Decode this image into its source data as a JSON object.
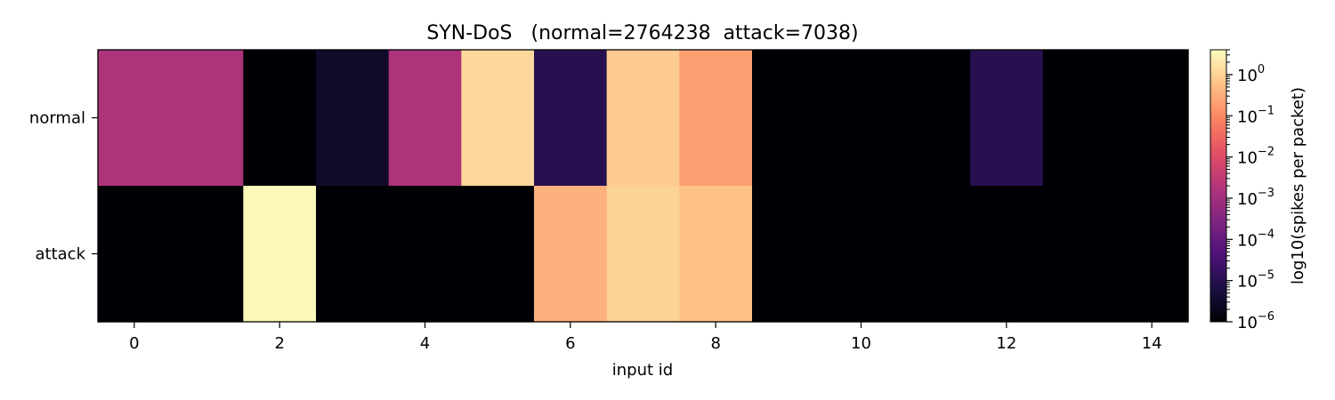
{
  "chart_data": {
    "type": "heatmap",
    "title": "SYN-DoS   (normal=2764238  attack=7038)",
    "xlabel": "input id",
    "ylabel": "",
    "rows": [
      "normal",
      "attack"
    ],
    "x": [
      0,
      1,
      2,
      3,
      4,
      5,
      6,
      7,
      8,
      9,
      10,
      11,
      12,
      13,
      14
    ],
    "x_ticks": [
      "0",
      "2",
      "4",
      "6",
      "8",
      "10",
      "12",
      "14"
    ],
    "scale": "log",
    "colormap": "magma",
    "zlim": [
      1e-06,
      4
    ],
    "values": [
      [
        0.0015,
        0.0015,
        0,
        3e-06,
        0.0015,
        1.2,
        1e-05,
        0.8,
        0.2,
        0,
        0,
        0,
        1e-05,
        0,
        0
      ],
      [
        0,
        0,
        3.5,
        0,
        0,
        0,
        0.35,
        1.0,
        0.6,
        0,
        0,
        0,
        0,
        0,
        0
      ]
    ],
    "colorbar": {
      "label": "log10(spikes per packet)",
      "ticks": [
        {
          "base": "10",
          "exp": "0",
          "value": 1
        },
        {
          "base": "10",
          "exp": "−1",
          "value": 0.1
        },
        {
          "base": "10",
          "exp": "−2",
          "value": 0.01
        },
        {
          "base": "10",
          "exp": "−3",
          "value": 0.001
        },
        {
          "base": "10",
          "exp": "−4",
          "value": 0.0001
        },
        {
          "base": "10",
          "exp": "−5",
          "value": 1e-05
        },
        {
          "base": "10",
          "exp": "−6",
          "value": 1e-06
        }
      ]
    }
  }
}
